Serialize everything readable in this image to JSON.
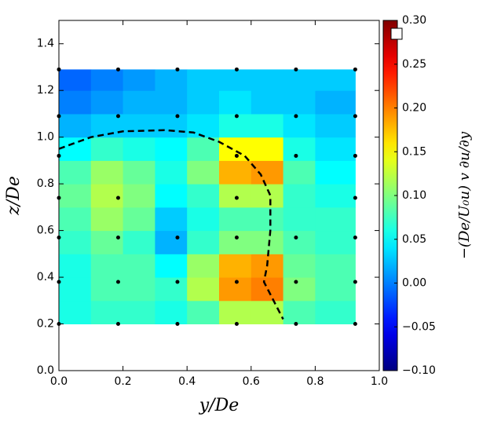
{
  "chart_data": {
    "type": "contour",
    "xlabel": "y/De",
    "ylabel": "z/De",
    "colorbar_label": "−(De/U₀u) v ∂u/∂y",
    "xlim": [
      0,
      1.0
    ],
    "ylim": [
      0,
      1.5
    ],
    "xticks": [
      {
        "value": 0,
        "label": "0.0"
      },
      {
        "value": 0.2,
        "label": "0.2"
      },
      {
        "value": 0.4,
        "label": "0.4"
      },
      {
        "value": 0.6,
        "label": "0.6"
      },
      {
        "value": 0.8,
        "label": "0.8"
      },
      {
        "value": 1.0,
        "label": "1.0"
      }
    ],
    "yticks": [
      {
        "value": 0,
        "label": "0.0"
      },
      {
        "value": 0.2,
        "label": "0.2"
      },
      {
        "value": 0.4,
        "label": "0.4"
      },
      {
        "value": 0.6,
        "label": "0.6"
      },
      {
        "value": 0.8,
        "label": "0.8"
      },
      {
        "value": 1.0,
        "label": "1.0"
      },
      {
        "value": 1.2,
        "label": "1.2"
      },
      {
        "value": 1.4,
        "label": "1.4"
      }
    ],
    "clim": [
      -0.1,
      0.3
    ],
    "cticks": [
      {
        "value": -0.1,
        "label": "−0.10"
      },
      {
        "value": -0.05,
        "label": "−0.05"
      },
      {
        "value": 0,
        "label": "0.00"
      },
      {
        "value": 0.05,
        "label": "0.05"
      },
      {
        "value": 0.1,
        "label": "0.10"
      },
      {
        "value": 0.15,
        "label": "0.15"
      },
      {
        "value": 0.2,
        "label": "0.20"
      },
      {
        "value": 0.25,
        "label": "0.25"
      },
      {
        "value": 0.3,
        "label": "0.30"
      }
    ],
    "x_edges": [
      0,
      0.1,
      0.2,
      0.3,
      0.4,
      0.5,
      0.6,
      0.7,
      0.8,
      0.925
    ],
    "y_edges": [
      0.2,
      0.3,
      0.4,
      0.5,
      0.6,
      0.7,
      0.8,
      0.9,
      1.0,
      1.1,
      1.2,
      1.29
    ],
    "values": [
      [
        0.06,
        0.07,
        0.07,
        0.06,
        0.08,
        0.12,
        0.12,
        0.08,
        0.07
      ],
      [
        0.06,
        0.08,
        0.08,
        0.07,
        0.12,
        0.19,
        0.2,
        0.1,
        0.08
      ],
      [
        0.06,
        0.08,
        0.08,
        0.05,
        0.11,
        0.18,
        0.19,
        0.09,
        0.08
      ],
      [
        0.07,
        0.09,
        0.07,
        0.02,
        0.07,
        0.1,
        0.1,
        0.08,
        0.07
      ],
      [
        0.08,
        0.11,
        0.09,
        0.03,
        0.06,
        0.08,
        0.08,
        0.07,
        0.07
      ],
      [
        0.09,
        0.12,
        0.1,
        0.05,
        0.07,
        0.12,
        0.12,
        0.07,
        0.06
      ],
      [
        0.08,
        0.11,
        0.09,
        0.06,
        0.1,
        0.18,
        0.19,
        0.08,
        0.05
      ],
      [
        0.05,
        0.07,
        0.06,
        0.05,
        0.08,
        0.15,
        0.15,
        0.06,
        0.04
      ],
      [
        0.02,
        0.03,
        0.03,
        0.03,
        0.04,
        0.06,
        0.06,
        0.04,
        0.03
      ],
      [
        0.0,
        0.01,
        0.02,
        0.02,
        0.03,
        0.04,
        0.03,
        0.03,
        0.02
      ],
      [
        -0.01,
        0.0,
        0.01,
        0.02,
        0.03,
        0.03,
        0.03,
        0.03,
        0.03
      ]
    ],
    "points": {
      "x": [
        0,
        0.185,
        0.37,
        0.555,
        0.74,
        0.925,
        0,
        0.185,
        0.37,
        0.555,
        0.74,
        0.925,
        0,
        0.555,
        0.74,
        0.925,
        0,
        0.185,
        0.555,
        0.925,
        0,
        0.185,
        0.37,
        0.555,
        0.74,
        0.925,
        0,
        0.185,
        0.37,
        0.555,
        0.74,
        0.925,
        0,
        0.185,
        0.37,
        0.555,
        0.74,
        0.925
      ],
      "y": [
        1.29,
        1.29,
        1.29,
        1.29,
        1.29,
        1.29,
        1.09,
        1.09,
        1.09,
        1.09,
        1.09,
        1.09,
        0.92,
        0.92,
        0.92,
        0.92,
        0.74,
        0.74,
        0.74,
        0.74,
        0.57,
        0.57,
        0.57,
        0.57,
        0.57,
        0.57,
        0.38,
        0.38,
        0.38,
        0.38,
        0.38,
        0.38,
        0.2,
        0.2,
        0.2,
        0.2,
        0.2,
        0.2
      ]
    },
    "boundary": {
      "x": [
        0,
        0.1,
        0.2,
        0.33,
        0.42,
        0.5,
        0.58,
        0.63,
        0.66,
        0.66,
        0.65,
        0.64,
        0.67,
        0.7
      ],
      "y": [
        0.95,
        1.0,
        1.025,
        1.03,
        1.02,
        0.98,
        0.92,
        0.84,
        0.75,
        0.6,
        0.45,
        0.38,
        0.3,
        0.22
      ]
    }
  }
}
